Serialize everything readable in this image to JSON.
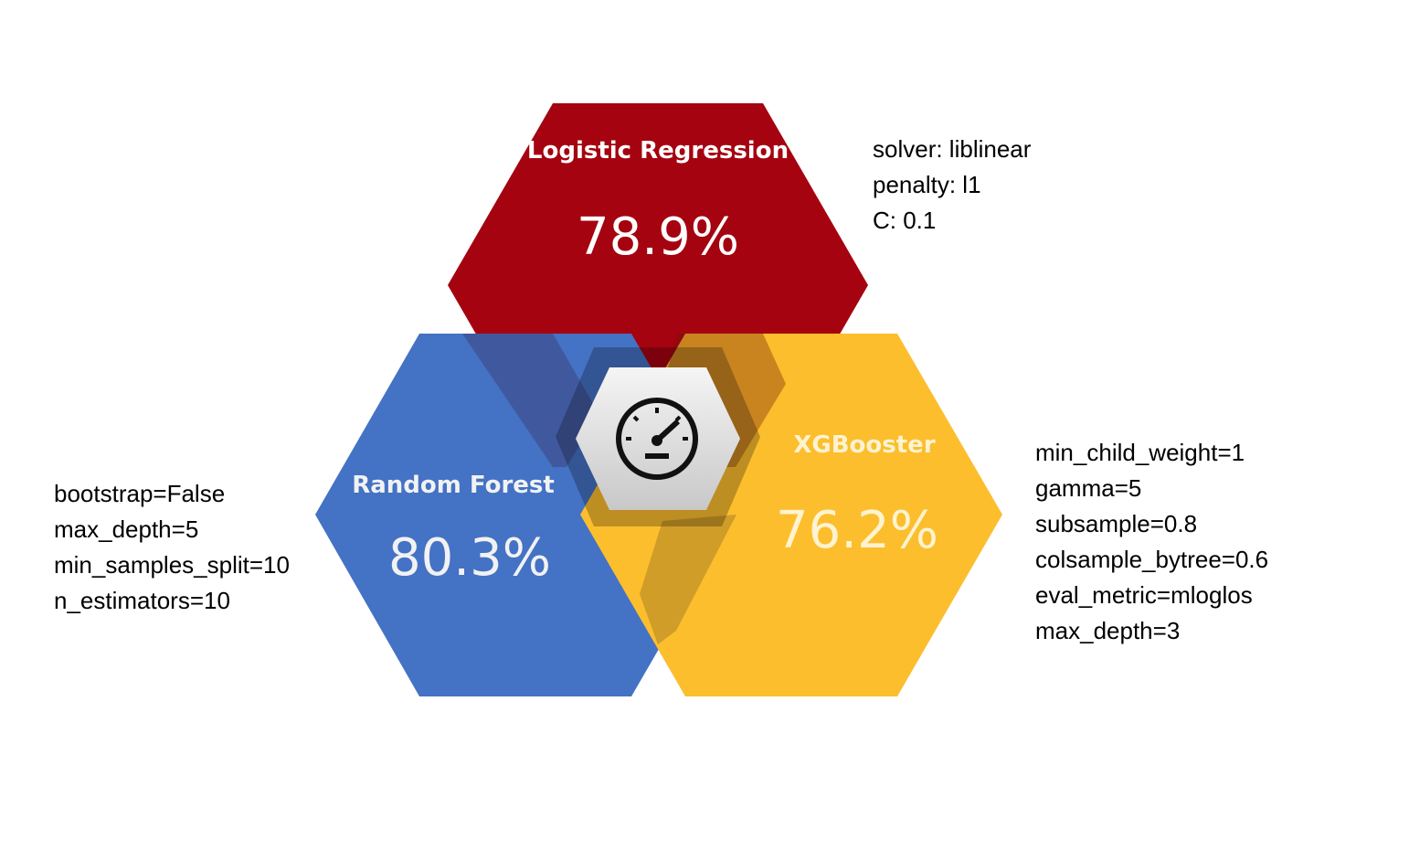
{
  "colors": {
    "logistic": "#A50310",
    "random_forest": "#4472C4",
    "xgboost": "#FCBE2D",
    "center_hex": "#D9D9D9",
    "text": "#000000",
    "spell_underline": "#E02020"
  },
  "models": [
    {
      "id": "logistic-regression",
      "title": "Logistic Regression",
      "accuracy": "78.9%",
      "params": [
        "solver: liblinear",
        "penalty: l1",
        "C: 0.1"
      ]
    },
    {
      "id": "random-forest",
      "title": "Random Forest",
      "accuracy": "80.3%",
      "params": [
        "bootstrap=False",
        "max_depth=5",
        "min_samples_split=10",
        "n_estimators=10"
      ]
    },
    {
      "id": "xgbooster",
      "title": "XGBooster",
      "accuracy": "76.2%",
      "params": [
        "min_child_weight=1",
        "gamma=5",
        "subsample=0.8",
        "colsample_bytree=0.6",
        "eval_metric=mloglos",
        "max_depth=3"
      ]
    }
  ],
  "center": {
    "icon": "speedometer-icon"
  }
}
